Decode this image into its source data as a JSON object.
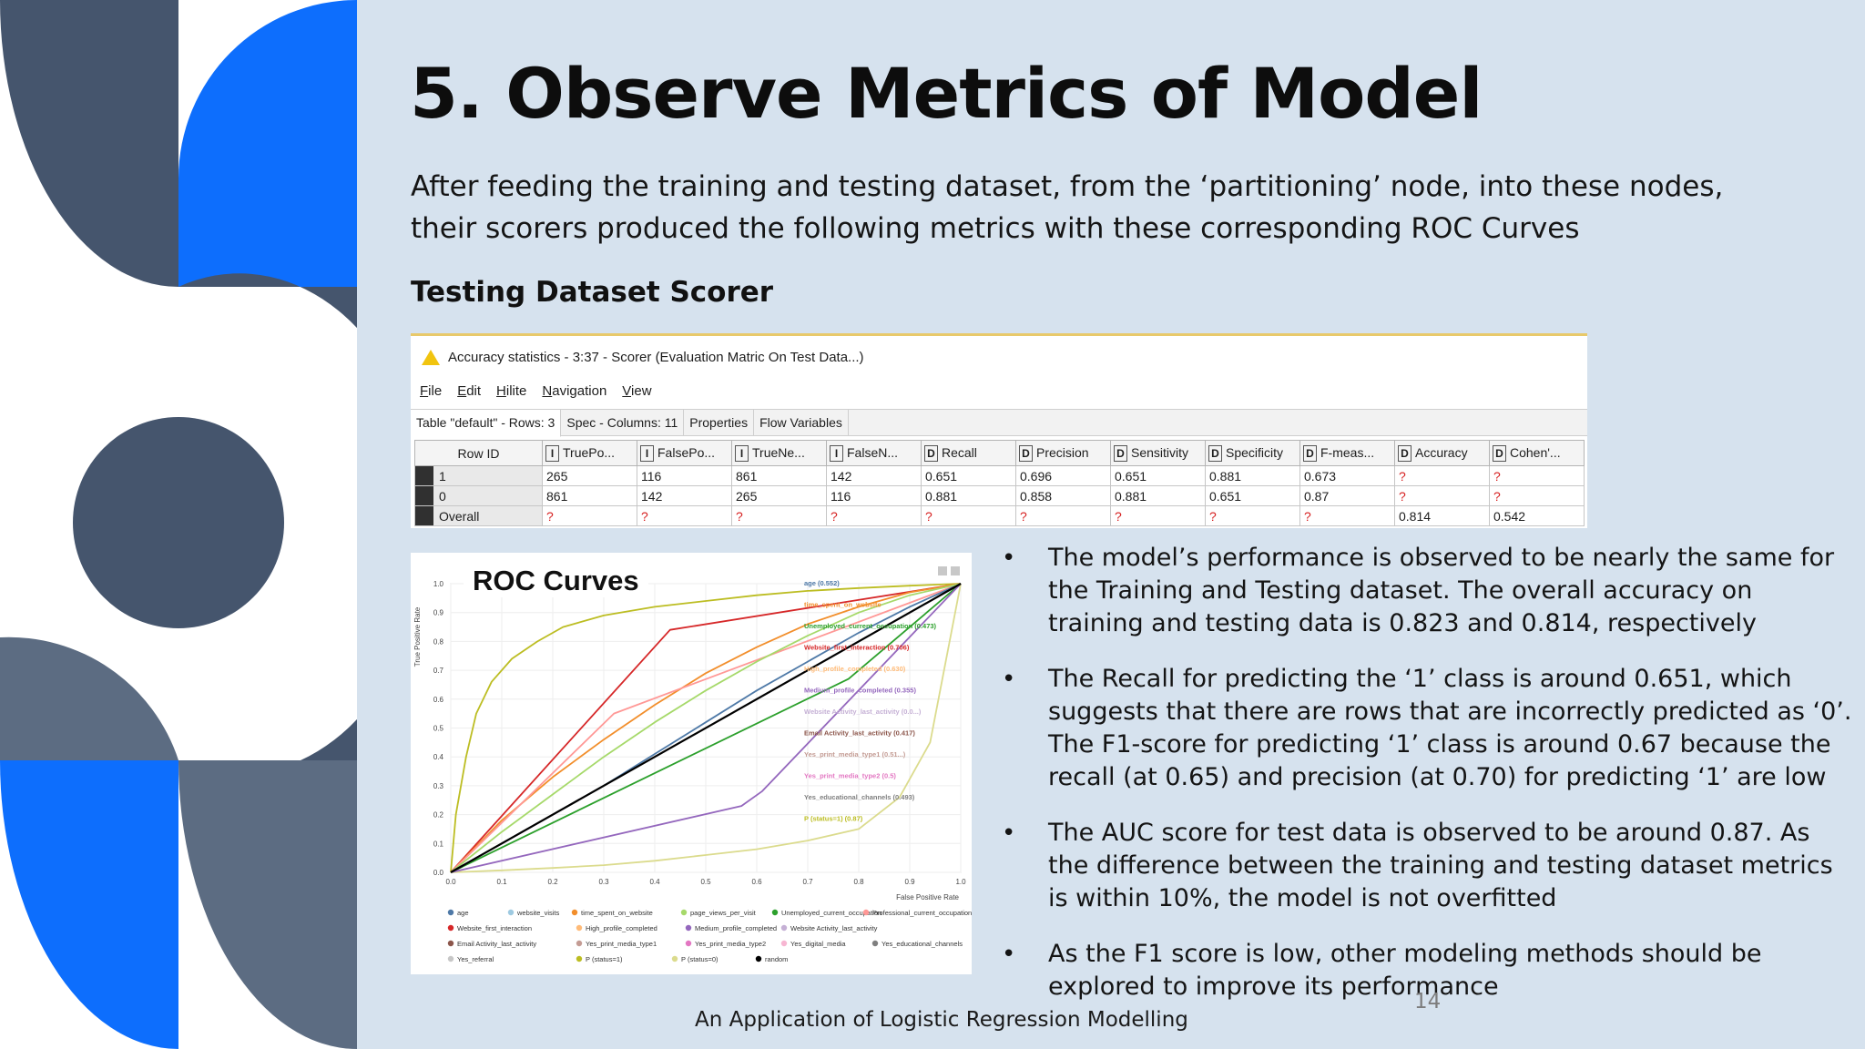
{
  "slide": {
    "title": "5. Observe Metrics of Model",
    "intro": "After feeding the training and testing dataset, from the ‘partitioning’ node, into these nodes, their scorers produced the following metrics with these corresponding ROC Curves",
    "subheading": "Testing Dataset Scorer",
    "page_number": "14",
    "footer": "An Application of Logistic Regression Modelling",
    "colors": {
      "background": "#d6e2ee",
      "navy": "#45556d",
      "blue": "#0d6efd",
      "slate": "#5c6c82"
    }
  },
  "scorer_window": {
    "title": "Accuracy statistics - 3:37 - Scorer (Evaluation Matric On Test Data...)",
    "title_icon": "warning-icon",
    "menu": [
      "File",
      "Edit",
      "Hilite",
      "Navigation",
      "View"
    ],
    "tabs": [
      "Table \"default\" - Rows: 3",
      "Spec - Columns: 11",
      "Properties",
      "Flow Variables"
    ],
    "columns": [
      {
        "type": "",
        "label": "Row ID"
      },
      {
        "type": "I",
        "label": "TruePo..."
      },
      {
        "type": "I",
        "label": "FalsePo..."
      },
      {
        "type": "I",
        "label": "TrueNe..."
      },
      {
        "type": "I",
        "label": "FalseN..."
      },
      {
        "type": "D",
        "label": "Recall"
      },
      {
        "type": "D",
        "label": "Precision"
      },
      {
        "type": "D",
        "label": "Sensitivity"
      },
      {
        "type": "D",
        "label": "Specificity"
      },
      {
        "type": "D",
        "label": "F-meas..."
      },
      {
        "type": "D",
        "label": "Accuracy"
      },
      {
        "type": "D",
        "label": "Cohen'..."
      }
    ],
    "rows": [
      [
        "1",
        "265",
        "116",
        "861",
        "142",
        "0.651",
        "0.696",
        "0.651",
        "0.881",
        "0.673",
        "?",
        "?"
      ],
      [
        "0",
        "861",
        "142",
        "265",
        "116",
        "0.881",
        "0.858",
        "0.881",
        "0.651",
        "0.87",
        "?",
        "?"
      ],
      [
        "Overall",
        "?",
        "?",
        "?",
        "?",
        "?",
        "?",
        "?",
        "?",
        "?",
        "0.814",
        "0.542"
      ]
    ]
  },
  "roc_panel": {
    "heading": "ROC Curves",
    "ylabel": "True Positive Rate",
    "xlabel": "False Positive Rate",
    "legend": [
      {
        "name": "age",
        "color": "#4e79a7"
      },
      {
        "name": "website_visits",
        "color": "#9ecae1"
      },
      {
        "name": "time_spent_on_website",
        "color": "#f28e2b"
      },
      {
        "name": "page_views_per_visit",
        "color": "#a6d96a"
      },
      {
        "name": "Unemployed_current_occupation",
        "color": "#2ca02c"
      },
      {
        "name": "Professional_current_occupation",
        "color": "#ff9896"
      },
      {
        "name": "Website_first_interaction",
        "color": "#d62728"
      },
      {
        "name": "High_profile_completed",
        "color": "#ffbb78"
      },
      {
        "name": "Medium_profile_completed",
        "color": "#9467bd"
      },
      {
        "name": "Website Activity_last_activity",
        "color": "#c5b0d5"
      },
      {
        "name": "Email Activity_last_activity",
        "color": "#8c564b"
      },
      {
        "name": "Yes_print_media_type1",
        "color": "#c49c94"
      },
      {
        "name": "Yes_print_media_type2",
        "color": "#e377c2"
      },
      {
        "name": "Yes_digital_media",
        "color": "#f7b6d2"
      },
      {
        "name": "Yes_educational_channels",
        "color": "#7f7f7f"
      },
      {
        "name": "Yes_referral",
        "color": "#c7c7c7"
      },
      {
        "name": "P (status=1)",
        "color": "#bcbd22"
      },
      {
        "name": "P (status=0)",
        "color": "#dbdb8d"
      },
      {
        "name": "random",
        "color": "#000000"
      }
    ]
  },
  "chart_data": {
    "type": "line",
    "title": "ROC Curves",
    "xlabel": "False Positive Rate",
    "ylabel": "True Positive Rate",
    "xlim": [
      0,
      1
    ],
    "ylim": [
      0,
      1
    ],
    "xticks": [
      "0.0",
      "0.1",
      "0.2",
      "0.3",
      "0.4",
      "0.5",
      "0.6",
      "0.7",
      "0.8",
      "0.9",
      "1.0"
    ],
    "yticks": [
      "0.0",
      "0.1",
      "0.2",
      "0.3",
      "0.4",
      "0.5",
      "0.6",
      "0.7",
      "0.8",
      "0.9",
      "1.0"
    ],
    "grid": true,
    "legend_position": "bottom",
    "annotations": [
      {
        "text": "age (0.552)",
        "color": "#4e79a7"
      },
      {
        "text": "time_spent_on_website",
        "color": "#f28e2b"
      },
      {
        "text": "Unemployed_current_occupation (0.473)",
        "color": "#2ca02c"
      },
      {
        "text": "Website_first_interaction (0.706)",
        "color": "#d62728"
      },
      {
        "text": "High_profile_completed (0.630)",
        "color": "#ffbb78"
      },
      {
        "text": "Medium_profile_completed (0.355)",
        "color": "#9467bd"
      },
      {
        "text": "Website Activity_last_activity (0.0...)",
        "color": "#c5b0d5"
      },
      {
        "text": "Email Activity_last_activity (0.417)",
        "color": "#8c564b"
      },
      {
        "text": "Yes_print_media_type1 (0.51...)",
        "color": "#c49c94"
      },
      {
        "text": "Yes_print_media_type2 (0.5)",
        "color": "#e377c2"
      },
      {
        "text": "Yes_educational_channels (0.493)",
        "color": "#7f7f7f"
      },
      {
        "text": "P (status=1) (0.87)",
        "color": "#bcbd22"
      }
    ],
    "series": [
      {
        "name": "P (status=1)",
        "color": "#bcbd22",
        "x": [
          0,
          0.01,
          0.03,
          0.05,
          0.08,
          0.12,
          0.17,
          0.22,
          0.3,
          0.4,
          0.5,
          0.6,
          0.7,
          0.8,
          0.9,
          1.0
        ],
        "y": [
          0,
          0.2,
          0.4,
          0.55,
          0.66,
          0.74,
          0.8,
          0.85,
          0.89,
          0.92,
          0.94,
          0.96,
          0.975,
          0.985,
          0.993,
          1.0
        ]
      },
      {
        "name": "P (status=0)",
        "color": "#dbdb8d",
        "x": [
          0,
          0.1,
          0.2,
          0.3,
          0.4,
          0.5,
          0.6,
          0.7,
          0.8,
          0.88,
          0.94,
          1.0
        ],
        "y": [
          0,
          0.007,
          0.015,
          0.025,
          0.04,
          0.06,
          0.08,
          0.11,
          0.15,
          0.26,
          0.45,
          1.0
        ]
      },
      {
        "name": "Website_first_interaction",
        "color": "#d62728",
        "x": [
          0,
          0.43,
          1.0
        ],
        "y": [
          0,
          0.84,
          1.0
        ]
      },
      {
        "name": "time_spent_on_website",
        "color": "#f28e2b",
        "x": [
          0,
          0.05,
          0.1,
          0.2,
          0.3,
          0.4,
          0.5,
          0.6,
          0.7,
          0.8,
          0.9,
          1.0
        ],
        "y": [
          0,
          0.09,
          0.18,
          0.33,
          0.46,
          0.58,
          0.69,
          0.78,
          0.86,
          0.92,
          0.97,
          1.0
        ]
      },
      {
        "name": "Unemployed_current_occupation",
        "color": "#2ca02c",
        "x": [
          0,
          0.78,
          1.0
        ],
        "y": [
          0,
          0.67,
          1.0
        ]
      },
      {
        "name": "Medium_profile_completed",
        "color": "#9467bd",
        "x": [
          0,
          0.57,
          0.61,
          1.0
        ],
        "y": [
          0,
          0.23,
          0.28,
          1.0
        ]
      },
      {
        "name": "Professional_current_occupation",
        "color": "#ff9896",
        "x": [
          0,
          0.32,
          1.0
        ],
        "y": [
          0,
          0.55,
          1.0
        ]
      },
      {
        "name": "age",
        "color": "#4e79a7",
        "x": [
          0,
          0.1,
          0.2,
          0.3,
          0.4,
          0.5,
          0.6,
          0.7,
          0.8,
          0.9,
          1.0
        ],
        "y": [
          0,
          0.1,
          0.2,
          0.3,
          0.41,
          0.52,
          0.63,
          0.73,
          0.83,
          0.92,
          1.0
        ]
      },
      {
        "name": "page_views_per_visit",
        "color": "#a6d96a",
        "x": [
          0,
          0.1,
          0.2,
          0.3,
          0.4,
          0.5,
          0.6,
          0.7,
          0.8,
          0.9,
          1.0
        ],
        "y": [
          0,
          0.14,
          0.27,
          0.4,
          0.52,
          0.63,
          0.73,
          0.82,
          0.9,
          0.96,
          1.0
        ]
      },
      {
        "name": "random",
        "color": "#000000",
        "x": [
          0,
          1.0
        ],
        "y": [
          0,
          1.0
        ]
      }
    ]
  },
  "bullets": [
    "The model’s performance is observed to be nearly the same for the Training and Testing dataset. The overall accuracy on training and testing data is 0.823 and 0.814, respectively",
    "The Recall for predicting the ‘1’ class is around 0.651, which suggests that there are rows that are incorrectly predicted as ‘0’. The F1-score for predicting ‘1’ class is around 0.67 because the recall (at 0.65) and precision (at 0.70) for predicting ‘1’ are low",
    "The AUC score for test data is observed to be around 0.87. As the difference between the training and testing dataset metrics is within 10%, the model is not overfitted",
    "As the F1 score is low, other modeling methods should be explored to improve its performance"
  ]
}
